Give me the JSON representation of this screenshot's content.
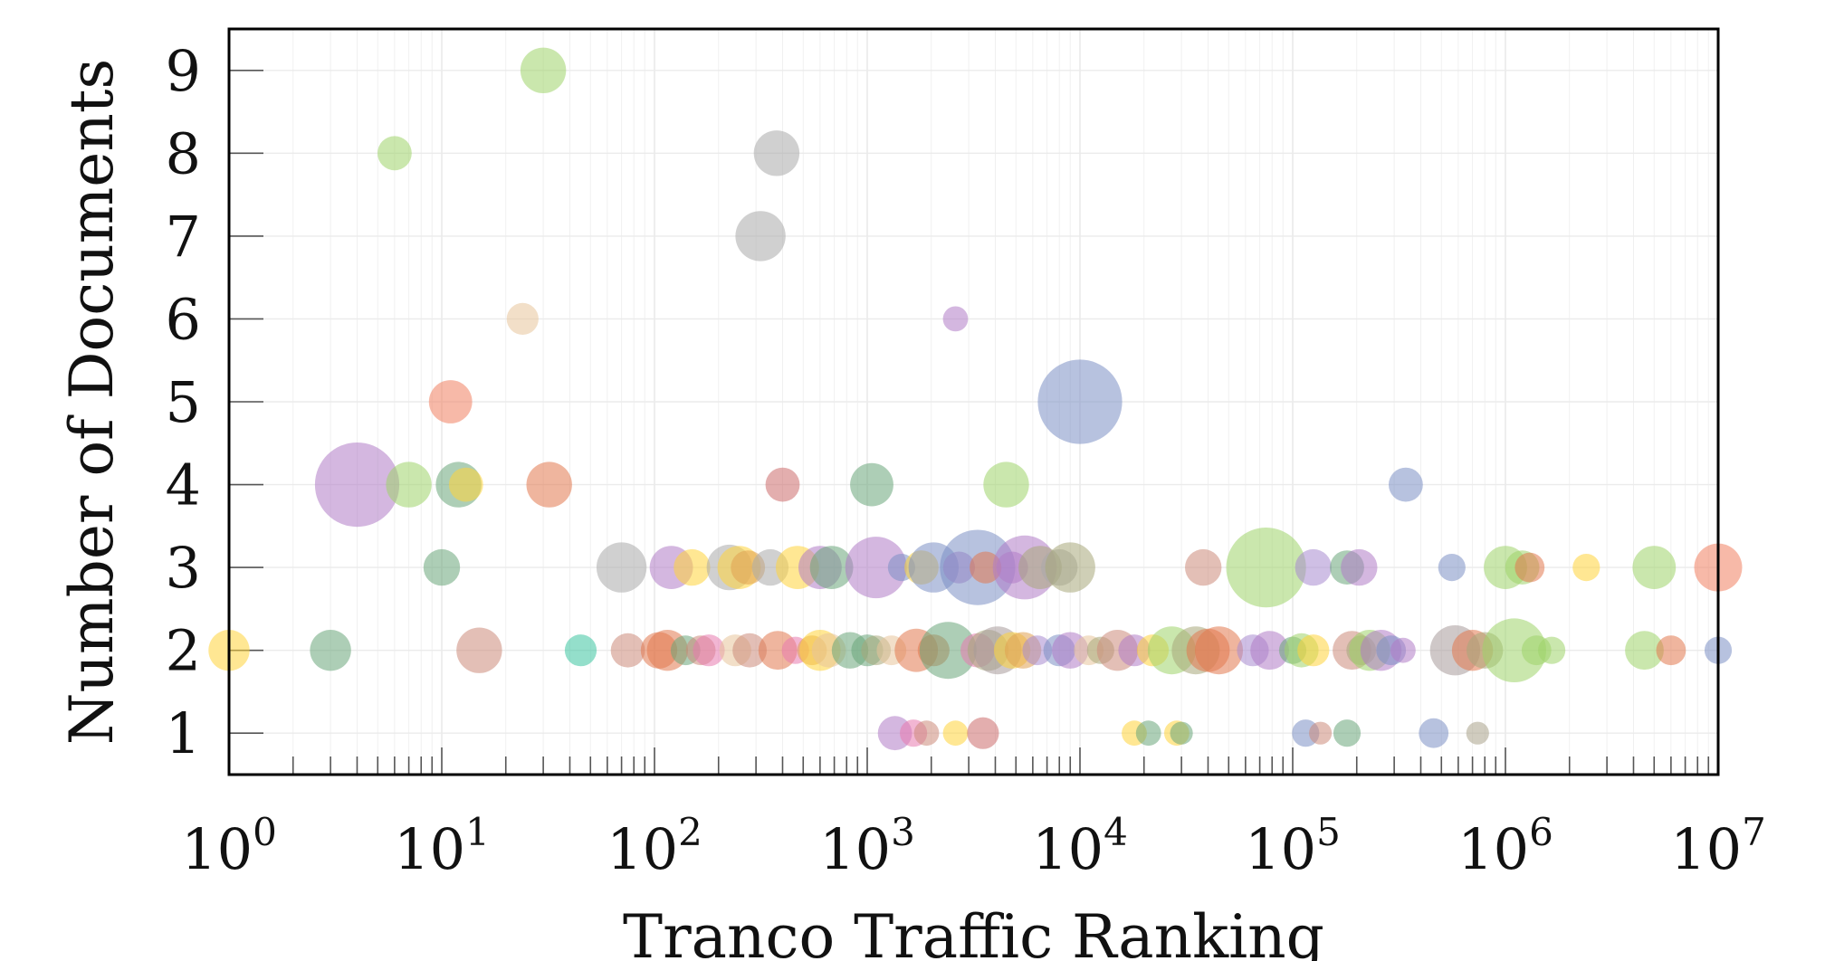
{
  "chart_data": {
    "type": "scatter",
    "xlabel": "Tranco Traffic Ranking",
    "ylabel": "Number of Documents",
    "x_scale": "log",
    "xlim": [
      1,
      10000000
    ],
    "ylim": [
      0.5,
      9.5
    ],
    "x_ticks": [
      {
        "base": "10",
        "exp": "0",
        "value": 1
      },
      {
        "base": "10",
        "exp": "1",
        "value": 10
      },
      {
        "base": "10",
        "exp": "2",
        "value": 100
      },
      {
        "base": "10",
        "exp": "3",
        "value": 1000
      },
      {
        "base": "10",
        "exp": "4",
        "value": 10000
      },
      {
        "base": "10",
        "exp": "5",
        "value": 100000
      },
      {
        "base": "10",
        "exp": "6",
        "value": 1000000
      },
      {
        "base": "10",
        "exp": "7",
        "value": 10000000
      }
    ],
    "y_ticks": [
      "1",
      "2",
      "3",
      "4",
      "5",
      "6",
      "7",
      "8",
      "9"
    ],
    "grid": true,
    "marker_opacity": 0.55,
    "points": [
      {
        "x": 30,
        "y": 9,
        "r": 2,
        "color": "#9ed36a"
      },
      {
        "x": 6,
        "y": 8,
        "r": 1.5,
        "color": "#9ed36a"
      },
      {
        "x": 375,
        "y": 8,
        "r": 2,
        "color": "#aaaaaa"
      },
      {
        "x": 315,
        "y": 7,
        "r": 2.2,
        "color": "#aaaaaa"
      },
      {
        "x": 24,
        "y": 6,
        "r": 1.4,
        "color": "#e8c49a"
      },
      {
        "x": 2600,
        "y": 6,
        "r": 1.1,
        "color": "#b07cc6"
      },
      {
        "x": 11,
        "y": 5,
        "r": 1.9,
        "color": "#f07f61"
      },
      {
        "x": 10000,
        "y": 5,
        "r": 3.7,
        "color": "#7b8fc4"
      },
      {
        "x": 4,
        "y": 4,
        "r": 3.7,
        "color": "#b07cc6"
      },
      {
        "x": 7,
        "y": 4,
        "r": 2,
        "color": "#9ed36a"
      },
      {
        "x": 12,
        "y": 4,
        "r": 2,
        "color": "#6aa57a"
      },
      {
        "x": 13,
        "y": 4,
        "r": 1.5,
        "color": "#ffd43b"
      },
      {
        "x": 32,
        "y": 4,
        "r": 2,
        "color": "#e2784f"
      },
      {
        "x": 400,
        "y": 4,
        "r": 1.5,
        "color": "#cc6b6b"
      },
      {
        "x": 1050,
        "y": 4,
        "r": 1.9,
        "color": "#6aa57a"
      },
      {
        "x": 4500,
        "y": 4,
        "r": 2,
        "color": "#9ed36a"
      },
      {
        "x": 340000,
        "y": 4,
        "r": 1.5,
        "color": "#7b8fc4"
      },
      {
        "x": 10,
        "y": 3,
        "r": 1.6,
        "color": "#6aa57a"
      },
      {
        "x": 70,
        "y": 3,
        "r": 2.2,
        "color": "#aaaaaa"
      },
      {
        "x": 120,
        "y": 3,
        "r": 1.9,
        "color": "#b07cc6"
      },
      {
        "x": 150,
        "y": 3,
        "r": 1.6,
        "color": "#ffd43b"
      },
      {
        "x": 225,
        "y": 3,
        "r": 2,
        "color": "#aaaaaa"
      },
      {
        "x": 250,
        "y": 3,
        "r": 1.9,
        "color": "#ffd43b"
      },
      {
        "x": 275,
        "y": 3,
        "r": 1.5,
        "color": "#e0a050"
      },
      {
        "x": 350,
        "y": 3,
        "r": 1.6,
        "color": "#aaaaaa"
      },
      {
        "x": 470,
        "y": 3,
        "r": 1.9,
        "color": "#ffd43b"
      },
      {
        "x": 600,
        "y": 3,
        "r": 1.9,
        "color": "#b07cc6"
      },
      {
        "x": 680,
        "y": 3,
        "r": 1.9,
        "color": "#6aa57a"
      },
      {
        "x": 1100,
        "y": 3,
        "r": 2.7,
        "color": "#b07cc6"
      },
      {
        "x": 1450,
        "y": 3,
        "r": 1.2,
        "color": "#7b8fc4"
      },
      {
        "x": 1800,
        "y": 3,
        "r": 1.5,
        "color": "#ffd43b"
      },
      {
        "x": 2050,
        "y": 3,
        "r": 2.2,
        "color": "#7b8fc4"
      },
      {
        "x": 2700,
        "y": 3,
        "r": 1.4,
        "color": "#b07cc6"
      },
      {
        "x": 3300,
        "y": 3,
        "r": 3.3,
        "color": "#7b8fc4"
      },
      {
        "x": 3600,
        "y": 3,
        "r": 1.4,
        "color": "#e2784f"
      },
      {
        "x": 4800,
        "y": 3,
        "r": 1.4,
        "color": "#b07cc6"
      },
      {
        "x": 5500,
        "y": 3,
        "r": 2.8,
        "color": "#b07cc6"
      },
      {
        "x": 6500,
        "y": 3,
        "r": 1.9,
        "color": "#a8a87a"
      },
      {
        "x": 8000,
        "y": 3,
        "r": 1.6,
        "color": "#aaaaaa"
      },
      {
        "x": 9000,
        "y": 3,
        "r": 2.2,
        "color": "#a8a87a"
      },
      {
        "x": 38000,
        "y": 3,
        "r": 1.6,
        "color": "#cc8a7a"
      },
      {
        "x": 75000,
        "y": 3,
        "r": 3.5,
        "color": "#9ed36a"
      },
      {
        "x": 125000,
        "y": 3,
        "r": 1.6,
        "color": "#a88ad0"
      },
      {
        "x": 180000,
        "y": 3,
        "r": 1.5,
        "color": "#6aa57a"
      },
      {
        "x": 205000,
        "y": 3,
        "r": 1.6,
        "color": "#b07cc6"
      },
      {
        "x": 560000,
        "y": 3,
        "r": 1.2,
        "color": "#7b8fc4"
      },
      {
        "x": 1000000,
        "y": 3,
        "r": 1.9,
        "color": "#9ed36a"
      },
      {
        "x": 1200000,
        "y": 3,
        "r": 1.5,
        "color": "#9ed36a"
      },
      {
        "x": 1300000,
        "y": 3,
        "r": 1.3,
        "color": "#e2784f"
      },
      {
        "x": 2400000,
        "y": 3,
        "r": 1.2,
        "color": "#ffd43b"
      },
      {
        "x": 5000000,
        "y": 3,
        "r": 1.9,
        "color": "#9ed36a"
      },
      {
        "x": 10000000,
        "y": 3,
        "r": 2.1,
        "color": "#f07f61"
      },
      {
        "x": 1,
        "y": 2,
        "r": 1.8,
        "color": "#ffd43b"
      },
      {
        "x": 3,
        "y": 2,
        "r": 1.8,
        "color": "#6aa57a"
      },
      {
        "x": 15,
        "y": 2,
        "r": 2,
        "color": "#cc8a7a"
      },
      {
        "x": 45,
        "y": 2,
        "r": 1.4,
        "color": "#3cc4a0"
      },
      {
        "x": 75,
        "y": 2,
        "r": 1.5,
        "color": "#cc8a7a"
      },
      {
        "x": 105,
        "y": 2,
        "r": 1.6,
        "color": "#e2784f"
      },
      {
        "x": 115,
        "y": 2,
        "r": 1.8,
        "color": "#e2784f"
      },
      {
        "x": 140,
        "y": 2,
        "r": 1.3,
        "color": "#6aa57a"
      },
      {
        "x": 165,
        "y": 2,
        "r": 1.3,
        "color": "#cc8a7a"
      },
      {
        "x": 180,
        "y": 2,
        "r": 1.4,
        "color": "#e87aae"
      },
      {
        "x": 240,
        "y": 2,
        "r": 1.4,
        "color": "#e8c49a"
      },
      {
        "x": 280,
        "y": 2,
        "r": 1.5,
        "color": "#cc8a7a"
      },
      {
        "x": 380,
        "y": 2,
        "r": 1.7,
        "color": "#e2784f"
      },
      {
        "x": 460,
        "y": 2,
        "r": 1.2,
        "color": "#e87aae"
      },
      {
        "x": 550,
        "y": 2,
        "r": 1.3,
        "color": "#e0a050"
      },
      {
        "x": 600,
        "y": 2,
        "r": 1.8,
        "color": "#ffd43b"
      },
      {
        "x": 660,
        "y": 2,
        "r": 1.5,
        "color": "#e8c49a"
      },
      {
        "x": 830,
        "y": 2,
        "r": 1.6,
        "color": "#6aa57a"
      },
      {
        "x": 1000,
        "y": 2,
        "r": 1.4,
        "color": "#6aa57a"
      },
      {
        "x": 1100,
        "y": 2,
        "r": 1.3,
        "color": "#a8a87a"
      },
      {
        "x": 1300,
        "y": 2,
        "r": 1.3,
        "color": "#e8c49a"
      },
      {
        "x": 1700,
        "y": 2,
        "r": 1.9,
        "color": "#e2784f"
      },
      {
        "x": 2050,
        "y": 2,
        "r": 1.4,
        "color": "#e2784f"
      },
      {
        "x": 2400,
        "y": 2,
        "r": 2.5,
        "color": "#6aa57a"
      },
      {
        "x": 3300,
        "y": 2,
        "r": 1.5,
        "color": "#e87aae"
      },
      {
        "x": 3700,
        "y": 2,
        "r": 1.8,
        "color": "#a8a87a"
      },
      {
        "x": 4100,
        "y": 2,
        "r": 2.1,
        "color": "#a89a9a"
      },
      {
        "x": 4800,
        "y": 2,
        "r": 1.6,
        "color": "#ffd43b"
      },
      {
        "x": 5400,
        "y": 2,
        "r": 1.6,
        "color": "#e0a050"
      },
      {
        "x": 6300,
        "y": 2,
        "r": 1.3,
        "color": "#a88ad0"
      },
      {
        "x": 8000,
        "y": 2,
        "r": 1.4,
        "color": "#7b8fc4"
      },
      {
        "x": 9000,
        "y": 2,
        "r": 1.6,
        "color": "#b07cc6"
      },
      {
        "x": 11000,
        "y": 2,
        "r": 1.3,
        "color": "#e8c49a"
      },
      {
        "x": 12500,
        "y": 2,
        "r": 1.2,
        "color": "#a8a87a"
      },
      {
        "x": 15000,
        "y": 2,
        "r": 1.8,
        "color": "#cc8a7a"
      },
      {
        "x": 18000,
        "y": 2,
        "r": 1.4,
        "color": "#b07cc6"
      },
      {
        "x": 22000,
        "y": 2,
        "r": 1.4,
        "color": "#ffd43b"
      },
      {
        "x": 27000,
        "y": 2,
        "r": 2.1,
        "color": "#9ed36a"
      },
      {
        "x": 35000,
        "y": 2,
        "r": 2.1,
        "color": "#a8a87a"
      },
      {
        "x": 40000,
        "y": 2,
        "r": 1.9,
        "color": "#e2784f"
      },
      {
        "x": 45000,
        "y": 2,
        "r": 2.1,
        "color": "#e2784f"
      },
      {
        "x": 65000,
        "y": 2,
        "r": 1.4,
        "color": "#a88ad0"
      },
      {
        "x": 78000,
        "y": 2,
        "r": 1.7,
        "color": "#b07cc6"
      },
      {
        "x": 100000,
        "y": 2,
        "r": 1.2,
        "color": "#6aa57a"
      },
      {
        "x": 110000,
        "y": 2,
        "r": 1.5,
        "color": "#9ed36a"
      },
      {
        "x": 125000,
        "y": 2,
        "r": 1.4,
        "color": "#ffd43b"
      },
      {
        "x": 190000,
        "y": 2,
        "r": 1.7,
        "color": "#cc8a7a"
      },
      {
        "x": 210000,
        "y": 2,
        "r": 1.3,
        "color": "#a8a87a"
      },
      {
        "x": 230000,
        "y": 2,
        "r": 1.8,
        "color": "#9ed36a"
      },
      {
        "x": 260000,
        "y": 2,
        "r": 1.8,
        "color": "#b07cc6"
      },
      {
        "x": 290000,
        "y": 2,
        "r": 1.3,
        "color": "#7b8fc4"
      },
      {
        "x": 330000,
        "y": 2,
        "r": 1.1,
        "color": "#b07cc6"
      },
      {
        "x": 580000,
        "y": 2,
        "r": 2.2,
        "color": "#a89a9a"
      },
      {
        "x": 700000,
        "y": 2,
        "r": 1.8,
        "color": "#e2784f"
      },
      {
        "x": 800000,
        "y": 2,
        "r": 1.6,
        "color": "#a8a87a"
      },
      {
        "x": 1100000,
        "y": 2,
        "r": 2.8,
        "color": "#9ed36a"
      },
      {
        "x": 1400000,
        "y": 2,
        "r": 1.3,
        "color": "#9ed36a"
      },
      {
        "x": 1650000,
        "y": 2,
        "r": 1.2,
        "color": "#9ed36a"
      },
      {
        "x": 4500000,
        "y": 2,
        "r": 1.7,
        "color": "#9ed36a"
      },
      {
        "x": 6000000,
        "y": 2,
        "r": 1.3,
        "color": "#e2784f"
      },
      {
        "x": 10000000,
        "y": 2,
        "r": 1.2,
        "color": "#7b8fc4"
      },
      {
        "x": 1350,
        "y": 1,
        "r": 1.5,
        "color": "#b07cc6"
      },
      {
        "x": 1650,
        "y": 1,
        "r": 1.2,
        "color": "#e87aae"
      },
      {
        "x": 1900,
        "y": 1,
        "r": 1.1,
        "color": "#cc8a7a"
      },
      {
        "x": 2600,
        "y": 1,
        "r": 1.1,
        "color": "#ffd43b"
      },
      {
        "x": 3500,
        "y": 1,
        "r": 1.4,
        "color": "#cc6b6b"
      },
      {
        "x": 18000,
        "y": 1,
        "r": 1.1,
        "color": "#ffd43b"
      },
      {
        "x": 21000,
        "y": 1,
        "r": 1.1,
        "color": "#6aa57a"
      },
      {
        "x": 28500,
        "y": 1,
        "r": 1.1,
        "color": "#ffd43b"
      },
      {
        "x": 30000,
        "y": 1,
        "r": 1,
        "color": "#6aa57a"
      },
      {
        "x": 115000,
        "y": 1,
        "r": 1.2,
        "color": "#7b8fc4"
      },
      {
        "x": 135000,
        "y": 1,
        "r": 1,
        "color": "#cc8a7a"
      },
      {
        "x": 180000,
        "y": 1,
        "r": 1.2,
        "color": "#6aa57a"
      },
      {
        "x": 460000,
        "y": 1,
        "r": 1.3,
        "color": "#7b8fc4"
      },
      {
        "x": 740000,
        "y": 1,
        "r": 1,
        "color": "#aaa28a"
      }
    ]
  }
}
